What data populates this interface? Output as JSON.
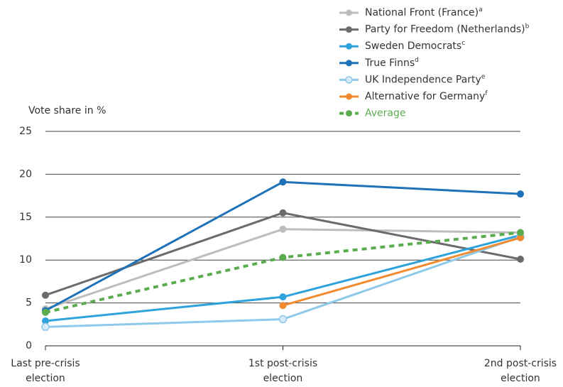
{
  "chart_data": {
    "type": "line",
    "y_label": "Vote share in %",
    "categories": [
      "Last pre-crisis election",
      "1st post-crisis election",
      "2nd post-crisis election"
    ],
    "series": [
      {
        "name": "National Front (France)",
        "note": "a",
        "color": "#bdbdbd",
        "values": [
          4.3,
          13.6,
          13.2
        ]
      },
      {
        "name": "Party for Freedom (Netherlands)",
        "note": "b",
        "color": "#6b6b6b",
        "values": [
          5.9,
          15.5,
          10.1
        ]
      },
      {
        "name": "Sweden Democrats",
        "note": "c",
        "color": "#2ea3db",
        "values": [
          2.9,
          5.7,
          12.9
        ]
      },
      {
        "name": "True Finns",
        "note": "d",
        "color": "#1f72b8",
        "values": [
          4.1,
          19.1,
          17.7
        ]
      },
      {
        "name": "UK Independence Party",
        "note": "e",
        "color": "#8ec8ea",
        "hollow": true,
        "values": [
          2.2,
          3.1,
          12.7
        ]
      },
      {
        "name": "Alternative for Germany",
        "note": "f",
        "color": "#f28a2e",
        "values": [
          null,
          4.7,
          12.6
        ]
      },
      {
        "name": "Average",
        "color": "#5aac4f",
        "dashed": true,
        "values": [
          3.9,
          10.3,
          13.2
        ]
      }
    ],
    "ylim": [
      0,
      25
    ],
    "yticks": [
      0,
      5,
      10,
      15,
      20,
      25
    ],
    "grid": true
  }
}
